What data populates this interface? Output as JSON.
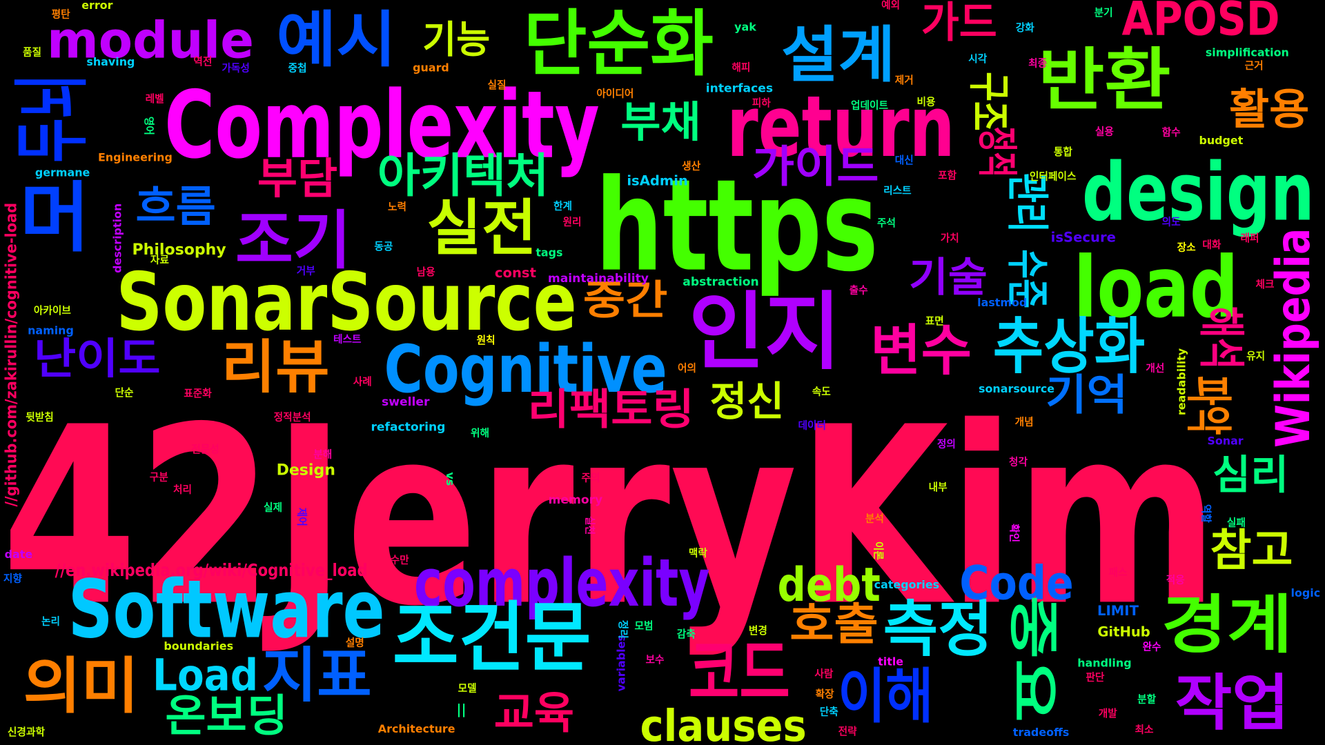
{
  "words": [
    "42JerryKim",
    "https",
    "Complexity",
    "SonarSource",
    "Software",
    "인지",
    "return",
    "design",
    "load",
    "Cognitive",
    "complexity",
    "조건문",
    "단순화",
    "코드",
    "반환",
    "설계",
    "예시",
    "조기",
    "실전",
    "추상화",
    "측정",
    "이해",
    "작업",
    "경계",
    "의미",
    "지표",
    "리뷰",
    "변수",
    "module",
    "APOSD",
    "Code",
    "debt",
    "clauses",
    "Load",
    "리팩토링",
    "아키텍처",
    "가이드",
    "부담",
    "흐름",
    "난이도",
    "부채",
    "기능",
    "가드",
    "활용",
    "기술",
    "중간",
    "정신",
    "기억",
    "심리",
    "참고",
    "호출",
    "교육",
    "온보딩",
    "Wikipedia",
    "두뇌",
    "머",
    "구조",
    "정적",
    "관리",
    "수준",
    "해석",
    "파악",
    "중요",
    "Philosophy",
    "const",
    "isAdmin",
    "interfaces",
    "abstraction",
    "maintainability",
    "tags",
    "description",
    "Design",
    "memory",
    "refactoring",
    "sweller",
    "//en.wikipedia.org/wiki/Cognitive_load",
    "//github.com/zakirullin/cognitive-load",
    "Engineering",
    "germane",
    "shaving",
    "error",
    "yak",
    "guard",
    "naming",
    "date",
    "boundaries",
    "variables",
    "title",
    "handling",
    "GitHub",
    "LIMIT",
    "lastmod",
    "isSecure",
    "sonarsource",
    "Sonar",
    "readability",
    "simplification",
    "budget",
    "logic",
    "tradeoffs",
    "categories",
    "Architecture",
    "vs",
    "||",
    "평탄",
    "품질",
    "레벨",
    "역전",
    "가독성",
    "중첩",
    "실질",
    "아이디어",
    "해피",
    "피하",
    "업데이트",
    "제거",
    "비용",
    "시각",
    "최종",
    "분기",
    "강화",
    "예외",
    "근거",
    "함수",
    "실용",
    "통합",
    "대신",
    "생산",
    "인터페이스",
    "포함",
    "리스트",
    "한계",
    "원리",
    "노력",
    "주석",
    "가치",
    "의도",
    "장소",
    "대화",
    "래퍼",
    "동공",
    "자료",
    "거부",
    "남용",
    "출수",
    "체크",
    "아카이브",
    "표면",
    "테스트",
    "원칙",
    "어의",
    "개선",
    "유지",
    "사례",
    "표준화",
    "단순",
    "속도",
    "뒷받침",
    "데이터",
    "개념",
    "정적분석",
    "위해",
    "정의",
    "전문성",
    "분해",
    "청각",
    "구분",
    "주의",
    "처리",
    "내부",
    "실제",
    "분석",
    "실패",
    "맥락",
    "수만",
    "지향",
    "패스",
    "적응",
    "논리",
    "모범",
    "감축",
    "변경",
    "완수",
    "설명",
    "보수",
    "사람",
    "판단",
    "모델",
    "확장",
    "분할",
    "단축",
    "개발",
    "신경과학",
    "전략",
    "최소",
    "영어",
    "실천",
    "제어",
    "이론",
    "확인",
    "역할",
    "정리"
  ]
}
